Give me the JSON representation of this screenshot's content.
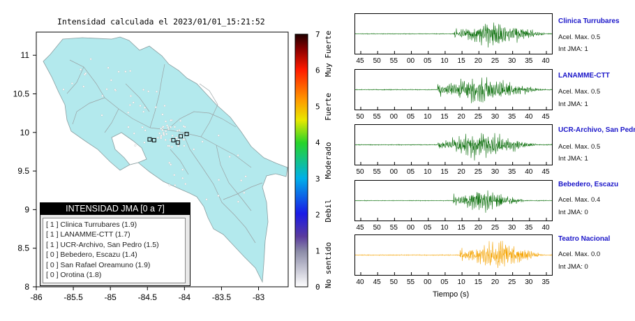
{
  "map": {
    "title": "Intensidad calculada el 2023/01/01_15:21:52",
    "x_ticks": [
      "-86",
      "-85.5",
      "-85",
      "-84.5",
      "-84",
      "-83.5",
      "-83"
    ],
    "y_ticks": [
      "11",
      "10.5",
      "10",
      "9.5",
      "9",
      "8.5",
      "8"
    ],
    "colorbar": {
      "ticks": [
        "7",
        "6",
        "5",
        "4",
        "3",
        "2",
        "1",
        "0"
      ],
      "labels": [
        "Muy Fuerte",
        "Fuerte",
        "Moderado",
        "Debil",
        "No sentido"
      ]
    },
    "legend": {
      "title": "INTENSIDAD JMA [0 a 7]",
      "items": [
        "[ 1 ]  Clinica Turrubares (1.9)",
        "[ 1 ]  LANAMME-CTT (1.7)",
        "[ 1 ]  UCR-Archivo, San Pedro (1.5)",
        "[ 0 ]  Bebedero, Escazu (1.4)",
        "[ 0 ]  San Rafael Oreamuno (1.9)",
        "[ 0 ]  Orotina (1.8)"
      ]
    }
  },
  "stations": [
    {
      "name": "Clinica Turrubares",
      "acel": "Acel. Max. 0.5",
      "int": "Int JMA: 1"
    },
    {
      "name": "LANAMME-CTT",
      "acel": "Acel. Max. 0.5",
      "int": "Int JMA: 1"
    },
    {
      "name": "UCR-Archivo, San Pedro",
      "acel": "Acel. Max. 0.5",
      "int": "Int JMA: 1"
    },
    {
      "name": "Bebedero, Escazu",
      "acel": "Acel. Max. 0.4",
      "int": "Int JMA: 0"
    },
    {
      "name": "Teatro Nacional",
      "acel": "Acel. Max. 0.0",
      "int": "Int JMA: 0"
    }
  ],
  "waveforms_xlabel": "Tiempo (s)",
  "colors": {
    "land": "#b3e9ed",
    "trace_green": "#0a6e0a",
    "trace_orange": "#f5a300",
    "station_title": "#1b16c9"
  },
  "chart_data": [
    {
      "type": "scatter",
      "title": "Intensidad calculada el 2023/01/01_15:21:52",
      "xlabel": "",
      "ylabel": "",
      "xlim": [
        -86,
        -82.6
      ],
      "ylim": [
        8,
        11.3
      ],
      "stations_marked": [
        {
          "lon": -84.47,
          "lat": 9.91
        },
        {
          "lon": -84.41,
          "lat": 9.9
        },
        {
          "lon": -84.15,
          "lat": 9.9
        },
        {
          "lon": -84.09,
          "lat": 9.87
        },
        {
          "lon": -84.05,
          "lat": 9.95
        },
        {
          "lon": -83.97,
          "lat": 9.98
        }
      ]
    },
    {
      "type": "line",
      "title": "Clinica Turrubares",
      "x_ticks": [
        "45",
        "50",
        "55",
        "00",
        "05",
        "10",
        "15",
        "20",
        "25",
        "30",
        "35",
        "40"
      ],
      "signal": {
        "onset": 0.5,
        "peak": 0.7,
        "end": 0.96,
        "amplitude": 0.85
      }
    },
    {
      "type": "line",
      "title": "LANAMME-CTT",
      "x_ticks": [
        "50",
        "55",
        "00",
        "05",
        "10",
        "15",
        "20",
        "25",
        "30",
        "35",
        "40",
        "45"
      ],
      "signal": {
        "onset": 0.42,
        "peak": 0.6,
        "end": 0.95,
        "amplitude": 0.9
      }
    },
    {
      "type": "line",
      "title": "UCR-Archivo, San Pedro",
      "x_ticks": [
        "50",
        "55",
        "00",
        "05",
        "10",
        "15",
        "20",
        "25",
        "30",
        "35",
        "40",
        "45"
      ],
      "signal": {
        "onset": 0.42,
        "peak": 0.61,
        "end": 0.92,
        "amplitude": 0.92
      }
    },
    {
      "type": "line",
      "title": "Bebedero, Escazu",
      "x_ticks": [
        "45",
        "50",
        "55",
        "00",
        "05",
        "10",
        "15",
        "20",
        "25",
        "30",
        "35",
        "40"
      ],
      "signal": {
        "onset": 0.5,
        "peak": 0.64,
        "end": 0.86,
        "amplitude": 0.75
      }
    },
    {
      "type": "line",
      "title": "Teatro Nacional",
      "x_ticks": [
        "40",
        "45",
        "50",
        "55",
        "00",
        "05",
        "10",
        "15",
        "20",
        "25",
        "30",
        "35"
      ],
      "xlabel": "Tiempo (s)",
      "signal": {
        "onset": 0.53,
        "peak": 0.72,
        "end": 0.95,
        "amplitude": 0.95
      }
    }
  ]
}
